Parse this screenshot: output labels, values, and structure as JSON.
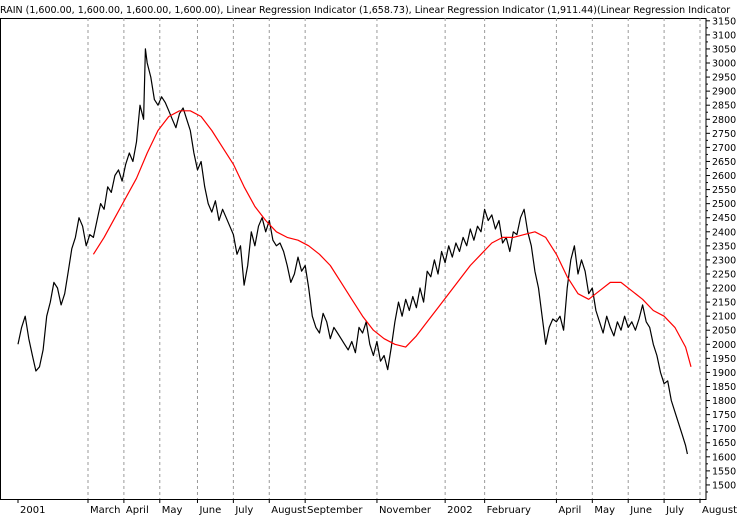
{
  "chart_data": {
    "type": "line",
    "header": "RAIN (1,600.00, 1,600.00, 1,600.00, 1,600.00), Linear Regression Indicator (1,658.73), Linear Regression Indicator (1,911.44)(Linear Regression Indicator",
    "title": "",
    "xlabel": "",
    "ylabel": "",
    "ylim": [
      1450,
      3160
    ],
    "y_ticks": [
      1500,
      1550,
      1600,
      1650,
      1700,
      1750,
      1800,
      1850,
      1900,
      1950,
      2000,
      2050,
      2100,
      2150,
      2200,
      2250,
      2300,
      2350,
      2400,
      2450,
      2500,
      2550,
      2600,
      2650,
      2700,
      2750,
      2800,
      2850,
      2900,
      2950,
      3000,
      3050,
      3100,
      3150
    ],
    "x_range": [
      0,
      19
    ],
    "x_ticks": [
      {
        "label": "2001",
        "x": 0.0
      },
      {
        "label": "March",
        "x": 1.95
      },
      {
        "label": "April",
        "x": 2.95
      },
      {
        "label": "May",
        "x": 3.95
      },
      {
        "label": "June",
        "x": 5.0
      },
      {
        "label": "July",
        "x": 6.0
      },
      {
        "label": "August",
        "x": 7.0
      },
      {
        "label": "September",
        "x": 8.0
      },
      {
        "label": "November",
        "x": 10.0
      },
      {
        "label": "2002",
        "x": 11.9
      },
      {
        "label": "February",
        "x": 13.0
      },
      {
        "label": "April",
        "x": 15.0
      },
      {
        "label": "May",
        "x": 16.0
      },
      {
        "label": "June",
        "x": 17.0
      },
      {
        "label": "July",
        "x": 18.0
      },
      {
        "label": "August",
        "x": 19.0
      }
    ],
    "grid": true,
    "axis_position": "right",
    "series": [
      {
        "color": "#000000",
        "points": [
          [
            0.0,
            2000
          ],
          [
            0.1,
            2060
          ],
          [
            0.2,
            2100
          ],
          [
            0.3,
            2020
          ],
          [
            0.4,
            1960
          ],
          [
            0.5,
            1905
          ],
          [
            0.6,
            1920
          ],
          [
            0.7,
            1980
          ],
          [
            0.8,
            2100
          ],
          [
            0.9,
            2150
          ],
          [
            1.0,
            2220
          ],
          [
            1.1,
            2200
          ],
          [
            1.2,
            2140
          ],
          [
            1.3,
            2180
          ],
          [
            1.4,
            2260
          ],
          [
            1.5,
            2340
          ],
          [
            1.6,
            2380
          ],
          [
            1.7,
            2450
          ],
          [
            1.8,
            2420
          ],
          [
            1.9,
            2350
          ],
          [
            2.0,
            2390
          ],
          [
            2.1,
            2380
          ],
          [
            2.2,
            2440
          ],
          [
            2.3,
            2500
          ],
          [
            2.4,
            2480
          ],
          [
            2.5,
            2560
          ],
          [
            2.6,
            2540
          ],
          [
            2.7,
            2600
          ],
          [
            2.8,
            2620
          ],
          [
            2.9,
            2580
          ],
          [
            3.0,
            2640
          ],
          [
            3.1,
            2680
          ],
          [
            3.2,
            2650
          ],
          [
            3.3,
            2720
          ],
          [
            3.4,
            2850
          ],
          [
            3.5,
            2800
          ],
          [
            3.55,
            3050
          ],
          [
            3.6,
            3000
          ],
          [
            3.7,
            2950
          ],
          [
            3.8,
            2870
          ],
          [
            3.9,
            2850
          ],
          [
            4.0,
            2880
          ],
          [
            4.1,
            2860
          ],
          [
            4.2,
            2830
          ],
          [
            4.3,
            2800
          ],
          [
            4.4,
            2770
          ],
          [
            4.5,
            2820
          ],
          [
            4.6,
            2840
          ],
          [
            4.7,
            2800
          ],
          [
            4.8,
            2760
          ],
          [
            4.9,
            2680
          ],
          [
            5.0,
            2620
          ],
          [
            5.1,
            2650
          ],
          [
            5.2,
            2560
          ],
          [
            5.3,
            2500
          ],
          [
            5.4,
            2470
          ],
          [
            5.5,
            2510
          ],
          [
            5.6,
            2440
          ],
          [
            5.7,
            2480
          ],
          [
            5.8,
            2450
          ],
          [
            5.9,
            2420
          ],
          [
            6.0,
            2390
          ],
          [
            6.1,
            2320
          ],
          [
            6.2,
            2350
          ],
          [
            6.3,
            2210
          ],
          [
            6.4,
            2280
          ],
          [
            6.5,
            2400
          ],
          [
            6.6,
            2350
          ],
          [
            6.7,
            2420
          ],
          [
            6.8,
            2450
          ],
          [
            6.9,
            2400
          ],
          [
            7.0,
            2440
          ],
          [
            7.1,
            2370
          ],
          [
            7.2,
            2350
          ],
          [
            7.3,
            2360
          ],
          [
            7.4,
            2330
          ],
          [
            7.5,
            2280
          ],
          [
            7.6,
            2220
          ],
          [
            7.7,
            2250
          ],
          [
            7.8,
            2310
          ],
          [
            7.9,
            2260
          ],
          [
            8.0,
            2280
          ],
          [
            8.1,
            2200
          ],
          [
            8.2,
            2100
          ],
          [
            8.3,
            2060
          ],
          [
            8.4,
            2040
          ],
          [
            8.5,
            2110
          ],
          [
            8.6,
            2080
          ],
          [
            8.7,
            2020
          ],
          [
            8.8,
            2060
          ],
          [
            8.9,
            2040
          ],
          [
            9.0,
            2020
          ],
          [
            9.1,
            2000
          ],
          [
            9.2,
            1980
          ],
          [
            9.3,
            2010
          ],
          [
            9.4,
            1970
          ],
          [
            9.5,
            2060
          ],
          [
            9.6,
            2040
          ],
          [
            9.7,
            2080
          ],
          [
            9.8,
            2000
          ],
          [
            9.9,
            1960
          ],
          [
            10.0,
            2010
          ],
          [
            10.1,
            1940
          ],
          [
            10.2,
            1960
          ],
          [
            10.3,
            1910
          ],
          [
            10.4,
            1990
          ],
          [
            10.5,
            2080
          ],
          [
            10.6,
            2150
          ],
          [
            10.7,
            2100
          ],
          [
            10.8,
            2160
          ],
          [
            10.9,
            2120
          ],
          [
            11.0,
            2170
          ],
          [
            11.1,
            2130
          ],
          [
            11.2,
            2200
          ],
          [
            11.3,
            2150
          ],
          [
            11.4,
            2260
          ],
          [
            11.5,
            2240
          ],
          [
            11.6,
            2300
          ],
          [
            11.7,
            2250
          ],
          [
            11.8,
            2330
          ],
          [
            11.9,
            2290
          ],
          [
            12.0,
            2350
          ],
          [
            12.1,
            2310
          ],
          [
            12.2,
            2360
          ],
          [
            12.3,
            2330
          ],
          [
            12.4,
            2380
          ],
          [
            12.5,
            2350
          ],
          [
            12.6,
            2410
          ],
          [
            12.7,
            2370
          ],
          [
            12.8,
            2420
          ],
          [
            12.9,
            2400
          ],
          [
            13.0,
            2480
          ],
          [
            13.1,
            2440
          ],
          [
            13.2,
            2460
          ],
          [
            13.3,
            2410
          ],
          [
            13.4,
            2440
          ],
          [
            13.5,
            2360
          ],
          [
            13.6,
            2380
          ],
          [
            13.7,
            2330
          ],
          [
            13.8,
            2400
          ],
          [
            13.9,
            2390
          ],
          [
            14.0,
            2450
          ],
          [
            14.1,
            2480
          ],
          [
            14.2,
            2400
          ],
          [
            14.3,
            2350
          ],
          [
            14.4,
            2260
          ],
          [
            14.5,
            2200
          ],
          [
            14.6,
            2100
          ],
          [
            14.7,
            2000
          ],
          [
            14.8,
            2060
          ],
          [
            14.9,
            2090
          ],
          [
            15.0,
            2080
          ],
          [
            15.1,
            2100
          ],
          [
            15.2,
            2050
          ],
          [
            15.3,
            2200
          ],
          [
            15.4,
            2300
          ],
          [
            15.5,
            2350
          ],
          [
            15.6,
            2250
          ],
          [
            15.7,
            2300
          ],
          [
            15.8,
            2260
          ],
          [
            15.9,
            2180
          ],
          [
            16.0,
            2200
          ],
          [
            16.1,
            2120
          ],
          [
            16.2,
            2080
          ],
          [
            16.3,
            2040
          ],
          [
            16.4,
            2100
          ],
          [
            16.5,
            2060
          ],
          [
            16.6,
            2030
          ],
          [
            16.7,
            2080
          ],
          [
            16.8,
            2050
          ],
          [
            16.9,
            2100
          ],
          [
            17.0,
            2060
          ],
          [
            17.1,
            2080
          ],
          [
            17.2,
            2050
          ],
          [
            17.3,
            2090
          ],
          [
            17.4,
            2140
          ],
          [
            17.5,
            2080
          ],
          [
            17.6,
            2060
          ],
          [
            17.7,
            2000
          ],
          [
            17.8,
            1960
          ],
          [
            17.9,
            1900
          ],
          [
            18.0,
            1860
          ],
          [
            18.1,
            1870
          ],
          [
            18.2,
            1800
          ],
          [
            18.3,
            1760
          ],
          [
            18.4,
            1720
          ],
          [
            18.5,
            1680
          ],
          [
            18.6,
            1640
          ],
          [
            18.65,
            1610
          ]
        ]
      },
      {
        "color": "#ff0000",
        "points": [
          [
            2.1,
            2320
          ],
          [
            2.4,
            2380
          ],
          [
            2.7,
            2450
          ],
          [
            3.0,
            2520
          ],
          [
            3.3,
            2590
          ],
          [
            3.6,
            2680
          ],
          [
            3.9,
            2760
          ],
          [
            4.2,
            2810
          ],
          [
            4.5,
            2830
          ],
          [
            4.8,
            2830
          ],
          [
            5.1,
            2810
          ],
          [
            5.4,
            2760
          ],
          [
            5.7,
            2700
          ],
          [
            6.0,
            2640
          ],
          [
            6.3,
            2560
          ],
          [
            6.6,
            2490
          ],
          [
            6.9,
            2440
          ],
          [
            7.2,
            2400
          ],
          [
            7.5,
            2380
          ],
          [
            7.8,
            2370
          ],
          [
            8.1,
            2350
          ],
          [
            8.4,
            2320
          ],
          [
            8.7,
            2280
          ],
          [
            9.0,
            2220
          ],
          [
            9.3,
            2160
          ],
          [
            9.6,
            2100
          ],
          [
            9.9,
            2050
          ],
          [
            10.2,
            2020
          ],
          [
            10.5,
            2000
          ],
          [
            10.8,
            1990
          ],
          [
            11.1,
            2030
          ],
          [
            11.4,
            2080
          ],
          [
            11.7,
            2130
          ],
          [
            12.0,
            2180
          ],
          [
            12.3,
            2230
          ],
          [
            12.6,
            2280
          ],
          [
            12.9,
            2320
          ],
          [
            13.2,
            2360
          ],
          [
            13.5,
            2380
          ],
          [
            13.8,
            2380
          ],
          [
            14.1,
            2390
          ],
          [
            14.4,
            2400
          ],
          [
            14.7,
            2380
          ],
          [
            15.0,
            2320
          ],
          [
            15.3,
            2240
          ],
          [
            15.6,
            2180
          ],
          [
            15.9,
            2160
          ],
          [
            16.2,
            2190
          ],
          [
            16.5,
            2220
          ],
          [
            16.8,
            2220
          ],
          [
            17.1,
            2190
          ],
          [
            17.4,
            2160
          ],
          [
            17.7,
            2120
          ],
          [
            18.0,
            2100
          ],
          [
            18.3,
            2060
          ],
          [
            18.6,
            1990
          ],
          [
            18.75,
            1920
          ]
        ]
      }
    ]
  }
}
